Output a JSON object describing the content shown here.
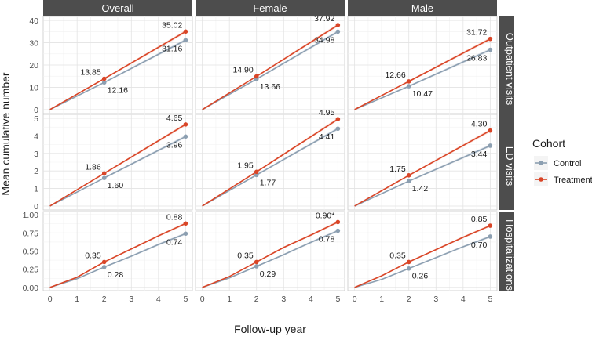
{
  "chart_data": {
    "type": "line",
    "ylabel": "Mean cumulative number",
    "xlabel": "Follow-up year",
    "x_ticks": [
      0,
      1,
      2,
      3,
      4,
      5
    ],
    "columns": [
      "Overall",
      "Female",
      "Male"
    ],
    "rows": [
      {
        "label": "Outpatient visits",
        "ylim": [
          0,
          40
        ],
        "yticks": [
          "0",
          "10",
          "20",
          "30",
          "40"
        ],
        "ytick_values": [
          0,
          10,
          20,
          30,
          40
        ]
      },
      {
        "label": "ED visits",
        "ylim": [
          0,
          5
        ],
        "yticks": [
          "0",
          "1",
          "2",
          "3",
          "4",
          "5"
        ],
        "ytick_values": [
          0,
          1,
          2,
          3,
          4,
          5
        ]
      },
      {
        "label": "Hospitalizations",
        "ylim": [
          0,
          1
        ],
        "yticks": [
          "0.00",
          "0.25",
          "0.50",
          "0.75",
          "1.00"
        ],
        "ytick_values": [
          0,
          0.25,
          0.5,
          0.75,
          1.0
        ]
      }
    ],
    "legend": {
      "title": "Cohort",
      "position": "right",
      "items": [
        {
          "name": "Control",
          "color": "#8c9fb1"
        },
        {
          "name": "Treatment",
          "color": "#d94527"
        }
      ]
    },
    "panels": [
      {
        "row": 0,
        "col": 0,
        "treatment": {
          "x": [
            0,
            2,
            5
          ],
          "y": [
            0,
            13.85,
            35.02
          ],
          "labels": [
            "13.85",
            "35.02"
          ]
        },
        "control": {
          "x": [
            0,
            2,
            5
          ],
          "y": [
            0,
            12.16,
            31.16
          ],
          "labels": [
            "12.16",
            "31.16"
          ]
        }
      },
      {
        "row": 0,
        "col": 1,
        "treatment": {
          "x": [
            0,
            2,
            5
          ],
          "y": [
            0,
            14.9,
            37.92
          ],
          "labels": [
            "14.90",
            "37.92"
          ]
        },
        "control": {
          "x": [
            0,
            2,
            5
          ],
          "y": [
            0,
            13.66,
            34.98
          ],
          "labels": [
            "13.66",
            "34.98"
          ]
        }
      },
      {
        "row": 0,
        "col": 2,
        "treatment": {
          "x": [
            0,
            2,
            5
          ],
          "y": [
            0,
            12.66,
            31.72
          ],
          "labels": [
            "12.66",
            "31.72"
          ]
        },
        "control": {
          "x": [
            0,
            2,
            5
          ],
          "y": [
            0,
            10.47,
            26.83
          ],
          "labels": [
            "10.47",
            "26.83"
          ]
        }
      },
      {
        "row": 1,
        "col": 0,
        "treatment": {
          "x": [
            0,
            2,
            5
          ],
          "y": [
            0,
            1.86,
            4.65
          ],
          "labels": [
            "1.86",
            "4.65"
          ]
        },
        "control": {
          "x": [
            0,
            2,
            5
          ],
          "y": [
            0,
            1.6,
            3.96
          ],
          "labels": [
            "1.60",
            "3.96"
          ]
        }
      },
      {
        "row": 1,
        "col": 1,
        "treatment": {
          "x": [
            0,
            2,
            5
          ],
          "y": [
            0,
            1.95,
            4.95
          ],
          "labels": [
            "1.95",
            "4.95"
          ]
        },
        "control": {
          "x": [
            0,
            2,
            5
          ],
          "y": [
            0,
            1.77,
            4.41
          ],
          "labels": [
            "1.77",
            "4.41"
          ]
        }
      },
      {
        "row": 1,
        "col": 2,
        "treatment": {
          "x": [
            0,
            2,
            5
          ],
          "y": [
            0,
            1.75,
            4.3
          ],
          "labels": [
            "1.75",
            "4.30"
          ]
        },
        "control": {
          "x": [
            0,
            2,
            5
          ],
          "y": [
            0,
            1.42,
            3.44
          ],
          "labels": [
            "1.42",
            "3.44"
          ]
        }
      },
      {
        "row": 2,
        "col": 0,
        "treatment": {
          "x": [
            0,
            1,
            2,
            3,
            4,
            5
          ],
          "y": [
            0,
            0.14,
            0.35,
            0.53,
            0.71,
            0.88
          ],
          "labels": [
            "0.35",
            "0.88"
          ]
        },
        "control": {
          "x": [
            0,
            1,
            2,
            3,
            4,
            5
          ],
          "y": [
            0,
            0.12,
            0.28,
            0.43,
            0.59,
            0.74
          ],
          "labels": [
            "0.28",
            "0.74"
          ]
        }
      },
      {
        "row": 2,
        "col": 1,
        "treatment": {
          "x": [
            0,
            1,
            2,
            3,
            4,
            5
          ],
          "y": [
            0,
            0.15,
            0.35,
            0.55,
            0.72,
            0.9
          ],
          "labels": [
            "0.35",
            "0.90*"
          ]
        },
        "control": {
          "x": [
            0,
            1,
            2,
            3,
            4,
            5
          ],
          "y": [
            0,
            0.13,
            0.29,
            0.45,
            0.62,
            0.78
          ],
          "labels": [
            "0.29",
            "0.78"
          ]
        }
      },
      {
        "row": 2,
        "col": 2,
        "treatment": {
          "x": [
            0,
            1,
            2,
            3,
            4,
            5
          ],
          "y": [
            0,
            0.16,
            0.35,
            0.52,
            0.69,
            0.85
          ],
          "labels": [
            "0.35",
            "0.85"
          ]
        },
        "control": {
          "x": [
            0,
            1,
            2,
            3,
            4,
            5
          ],
          "y": [
            0,
            0.11,
            0.26,
            0.41,
            0.56,
            0.7
          ],
          "labels": [
            "0.26",
            "0.70"
          ]
        }
      }
    ]
  }
}
